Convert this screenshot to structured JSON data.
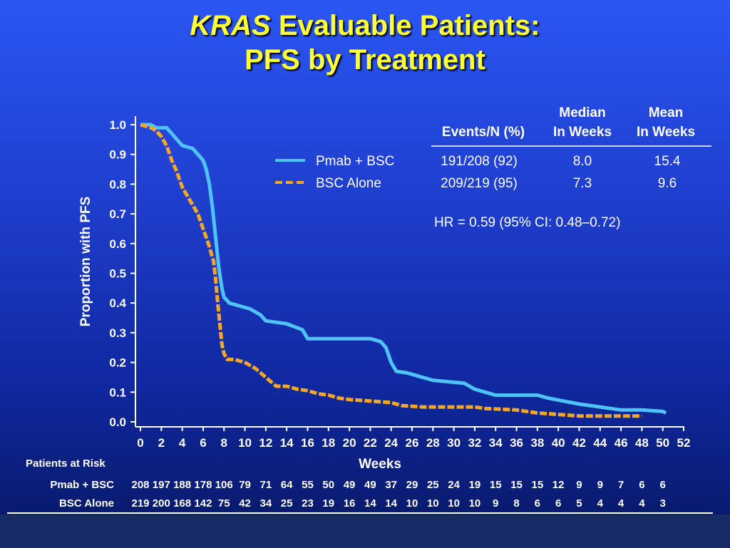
{
  "title": {
    "line1_italic": "KRAS",
    "line1_rest": " Evaluable Patients:",
    "line2": "PFS by Treatment"
  },
  "colors": {
    "pmab": "#4fc3f7",
    "bsc": "#f5a623",
    "title": "#ffff33",
    "text": "#ffffff"
  },
  "legend": {
    "header_events": "Events/N (%)",
    "header_median_1": "Median",
    "header_median_2": "In Weeks",
    "header_mean_1": "Mean",
    "header_mean_2": "In Weeks",
    "rows": [
      {
        "name": "Pmab + BSC",
        "events": "191/208 (92)",
        "median": "8.0",
        "mean": "15.4"
      },
      {
        "name": "BSC Alone",
        "events": "209/219 (95)",
        "median": "7.3",
        "mean": "9.6"
      }
    ],
    "hr": "HR = 0.59 (95% CI: 0.48–0.72)"
  },
  "risk_table": {
    "title": "Patients at Risk",
    "rows": [
      {
        "label": "Pmab + BSC",
        "values": [
          "208",
          "197",
          "188",
          "178",
          "106",
          "79",
          "71",
          "64",
          "55",
          "50",
          "49",
          "49",
          "37",
          "29",
          "25",
          "24",
          "19",
          "15",
          "15",
          "15",
          "12",
          "9",
          "9",
          "7",
          "6",
          "6"
        ]
      },
      {
        "label": "BSC Alone",
        "values": [
          "219",
          "200",
          "168",
          "142",
          "75",
          "42",
          "34",
          "25",
          "23",
          "19",
          "16",
          "14",
          "14",
          "10",
          "10",
          "10",
          "10",
          "9",
          "8",
          "6",
          "6",
          "5",
          "4",
          "4",
          "4",
          "3"
        ]
      }
    ]
  },
  "chart_data": {
    "type": "line",
    "title": "",
    "xlabel": "Weeks",
    "ylabel": "Proportion with PFS",
    "xlim": [
      0,
      52
    ],
    "ylim": [
      0,
      1.0
    ],
    "xticks": [
      0,
      2,
      4,
      6,
      8,
      10,
      12,
      14,
      16,
      18,
      20,
      22,
      24,
      26,
      28,
      30,
      32,
      34,
      36,
      38,
      40,
      42,
      44,
      46,
      48,
      50,
      52
    ],
    "yticks": [
      "0.0",
      "0.1",
      "0.2",
      "0.3",
      "0.4",
      "0.5",
      "0.6",
      "0.7",
      "0.8",
      "0.9",
      "1.0"
    ],
    "grid": false,
    "legend_position": "top-right",
    "series": [
      {
        "name": "Pmab + BSC",
        "style": "solid",
        "color": "#4fc3f7",
        "points": [
          [
            0,
            1.0
          ],
          [
            1,
            1.0
          ],
          [
            1.5,
            0.99
          ],
          [
            2.5,
            0.99
          ],
          [
            3,
            0.97
          ],
          [
            3.5,
            0.95
          ],
          [
            4,
            0.93
          ],
          [
            5,
            0.92
          ],
          [
            5.5,
            0.9
          ],
          [
            6,
            0.88
          ],
          [
            6.3,
            0.85
          ],
          [
            6.6,
            0.8
          ],
          [
            6.9,
            0.72
          ],
          [
            7.2,
            0.62
          ],
          [
            7.5,
            0.52
          ],
          [
            7.8,
            0.45
          ],
          [
            8,
            0.42
          ],
          [
            8.5,
            0.4
          ],
          [
            9.5,
            0.39
          ],
          [
            10.5,
            0.38
          ],
          [
            11.5,
            0.36
          ],
          [
            12,
            0.34
          ],
          [
            13,
            0.335
          ],
          [
            14,
            0.33
          ],
          [
            15.5,
            0.31
          ],
          [
            16,
            0.28
          ],
          [
            17,
            0.28
          ],
          [
            22,
            0.28
          ],
          [
            23,
            0.27
          ],
          [
            23.5,
            0.25
          ],
          [
            24,
            0.2
          ],
          [
            24.5,
            0.17
          ],
          [
            25.5,
            0.165
          ],
          [
            27,
            0.15
          ],
          [
            28,
            0.14
          ],
          [
            29.5,
            0.135
          ],
          [
            31,
            0.13
          ],
          [
            32,
            0.11
          ],
          [
            33,
            0.1
          ],
          [
            34,
            0.09
          ],
          [
            36,
            0.09
          ],
          [
            38,
            0.09
          ],
          [
            39,
            0.08
          ],
          [
            40.5,
            0.07
          ],
          [
            42,
            0.06
          ],
          [
            44,
            0.05
          ],
          [
            45,
            0.045
          ],
          [
            46,
            0.04
          ],
          [
            48,
            0.04
          ],
          [
            50,
            0.035
          ],
          [
            50.3,
            0.03
          ]
        ]
      },
      {
        "name": "BSC Alone",
        "style": "dashed",
        "color": "#f5a623",
        "points": [
          [
            0,
            1.0
          ],
          [
            1,
            0.99
          ],
          [
            1.5,
            0.98
          ],
          [
            2,
            0.96
          ],
          [
            2.5,
            0.93
          ],
          [
            3,
            0.88
          ],
          [
            3.5,
            0.84
          ],
          [
            4,
            0.79
          ],
          [
            4.5,
            0.76
          ],
          [
            5,
            0.73
          ],
          [
            5.5,
            0.7
          ],
          [
            6,
            0.65
          ],
          [
            6.5,
            0.6
          ],
          [
            7,
            0.54
          ],
          [
            7.2,
            0.48
          ],
          [
            7.4,
            0.4
          ],
          [
            7.6,
            0.33
          ],
          [
            7.8,
            0.26
          ],
          [
            8,
            0.23
          ],
          [
            8.3,
            0.21
          ],
          [
            9,
            0.21
          ],
          [
            10,
            0.2
          ],
          [
            11,
            0.18
          ],
          [
            12,
            0.15
          ],
          [
            13,
            0.12
          ],
          [
            14,
            0.12
          ],
          [
            15,
            0.11
          ],
          [
            16,
            0.105
          ],
          [
            17,
            0.095
          ],
          [
            18,
            0.09
          ],
          [
            19,
            0.08
          ],
          [
            20,
            0.075
          ],
          [
            22,
            0.07
          ],
          [
            24,
            0.065
          ],
          [
            25,
            0.055
          ],
          [
            27,
            0.05
          ],
          [
            32,
            0.05
          ],
          [
            33,
            0.045
          ],
          [
            36,
            0.04
          ],
          [
            38,
            0.03
          ],
          [
            40,
            0.025
          ],
          [
            42,
            0.02
          ],
          [
            45,
            0.02
          ],
          [
            48,
            0.02
          ]
        ]
      }
    ]
  }
}
